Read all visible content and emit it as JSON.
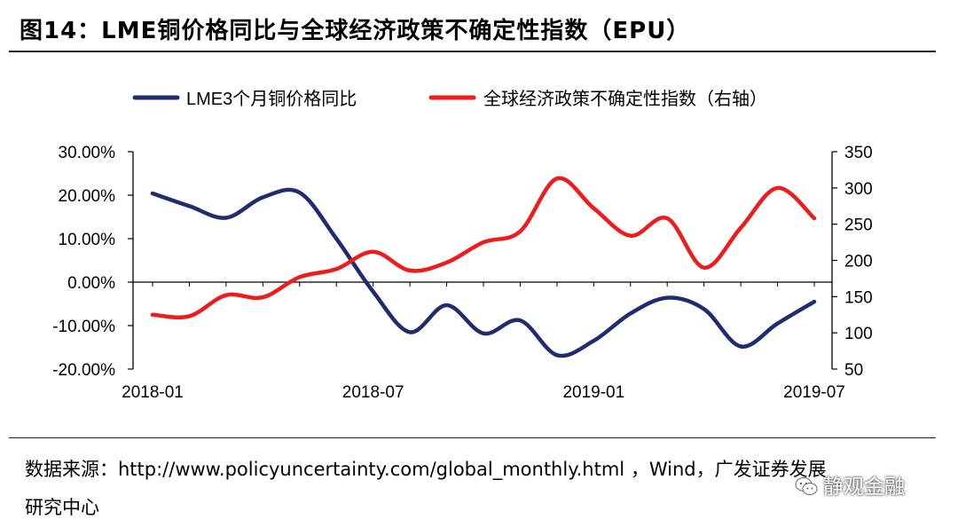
{
  "title": "图14：LME铜价格同比与全球经济政策不确定性指数（EPU）",
  "source": {
    "prefix": "数据来源：",
    "url": "http://www.policyuncertainty.com/global_monthly.html",
    "rest": " ，Wind，广发证券发展",
    "line2": "研究中心"
  },
  "watermark": "静观金融",
  "chart_data": {
    "type": "line",
    "x": [
      "2018-01",
      "2018-02",
      "2018-03",
      "2018-04",
      "2018-05",
      "2018-06",
      "2018-07",
      "2018-08",
      "2018-09",
      "2018-10",
      "2018-11",
      "2018-12",
      "2019-01",
      "2019-02",
      "2019-03",
      "2019-04",
      "2019-05",
      "2019-06",
      "2019-07"
    ],
    "x_tick_labels": [
      "2018-01",
      "2018-07",
      "2019-01",
      "2019-07"
    ],
    "left_axis": {
      "ylim": [
        -20,
        30
      ],
      "ticks": [
        "-20.00%",
        "-10.00%",
        "0.00%",
        "10.00%",
        "20.00%",
        "30.00%"
      ],
      "tick_values": [
        -20,
        -10,
        0,
        10,
        20,
        30
      ]
    },
    "right_axis": {
      "ylim": [
        50,
        350
      ],
      "ticks": [
        "50",
        "100",
        "150",
        "200",
        "250",
        "300",
        "350"
      ],
      "tick_values": [
        50,
        100,
        150,
        200,
        250,
        300,
        350
      ]
    },
    "legend_position": "top",
    "series": [
      {
        "name": "LME3个月铜价格同比",
        "axis": "left",
        "color": "#1f2d6e",
        "values": [
          20.4,
          17.5,
          14.8,
          19.5,
          20.6,
          10.0,
          -2.2,
          -11.5,
          -5.3,
          -11.8,
          -8.8,
          -16.8,
          -13.5,
          -7.2,
          -3.6,
          -6.2,
          -14.8,
          -9.5,
          -4.5
        ]
      },
      {
        "name": "全球经济政策不确定性指数（右轴）",
        "axis": "right",
        "color": "#ee1c1c",
        "values": [
          125,
          123,
          152,
          149,
          177,
          188,
          212,
          186,
          197,
          225,
          240,
          313,
          272,
          234,
          258,
          190,
          245,
          300,
          258
        ]
      }
    ]
  }
}
